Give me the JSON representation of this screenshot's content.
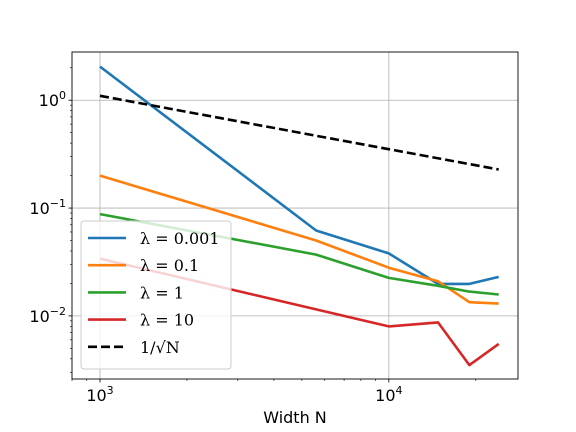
{
  "chart_data": {
    "type": "line",
    "title": "",
    "xlabel": "Width N",
    "ylabel": "",
    "xscale": "log",
    "yscale": "log",
    "xlim": [
      800,
      28000
    ],
    "ylim": [
      0.0026,
      2.8
    ],
    "grid": true,
    "legend_position": "lower-left",
    "x_ticks": [
      {
        "value": 1000,
        "base": "10",
        "exp": "3"
      },
      {
        "value": 10000,
        "base": "10",
        "exp": "4"
      }
    ],
    "y_ticks": [
      {
        "value": 1,
        "base": "10",
        "exp": "0"
      },
      {
        "value": 0.1,
        "base": "10",
        "exp": "−1"
      },
      {
        "value": 0.01,
        "base": "10",
        "exp": "−2"
      }
    ],
    "series": [
      {
        "name": "λ = 0.001",
        "color": "#1f77b4",
        "dash": "solid",
        "x": [
          1000,
          5600,
          10000,
          14800,
          19000,
          24000
        ],
        "y": [
          2.05,
          0.062,
          0.038,
          0.0198,
          0.0198,
          0.023
        ]
      },
      {
        "name": "λ = 0.1",
        "color": "#ff7f0e",
        "dash": "solid",
        "x": [
          1000,
          5600,
          10000,
          14800,
          19000,
          24000
        ],
        "y": [
          0.2,
          0.05,
          0.028,
          0.021,
          0.0134,
          0.013
        ]
      },
      {
        "name": "λ = 1",
        "color": "#2ca02c",
        "dash": "solid",
        "x": [
          1000,
          5600,
          10000,
          14800,
          19000,
          24000
        ],
        "y": [
          0.088,
          0.037,
          0.0225,
          0.019,
          0.0168,
          0.0158
        ]
      },
      {
        "name": "λ = 10",
        "color": "#d62728",
        "dash": "solid",
        "x": [
          1000,
          5600,
          10000,
          14800,
          19000,
          24000
        ],
        "y": [
          0.034,
          0.0115,
          0.008,
          0.0087,
          0.0035,
          0.0055
        ]
      },
      {
        "name": "1/√N",
        "color": "#000000",
        "dash": "dashed",
        "x": [
          1000,
          24000
        ],
        "y": [
          1.1,
          0.228
        ]
      }
    ]
  }
}
